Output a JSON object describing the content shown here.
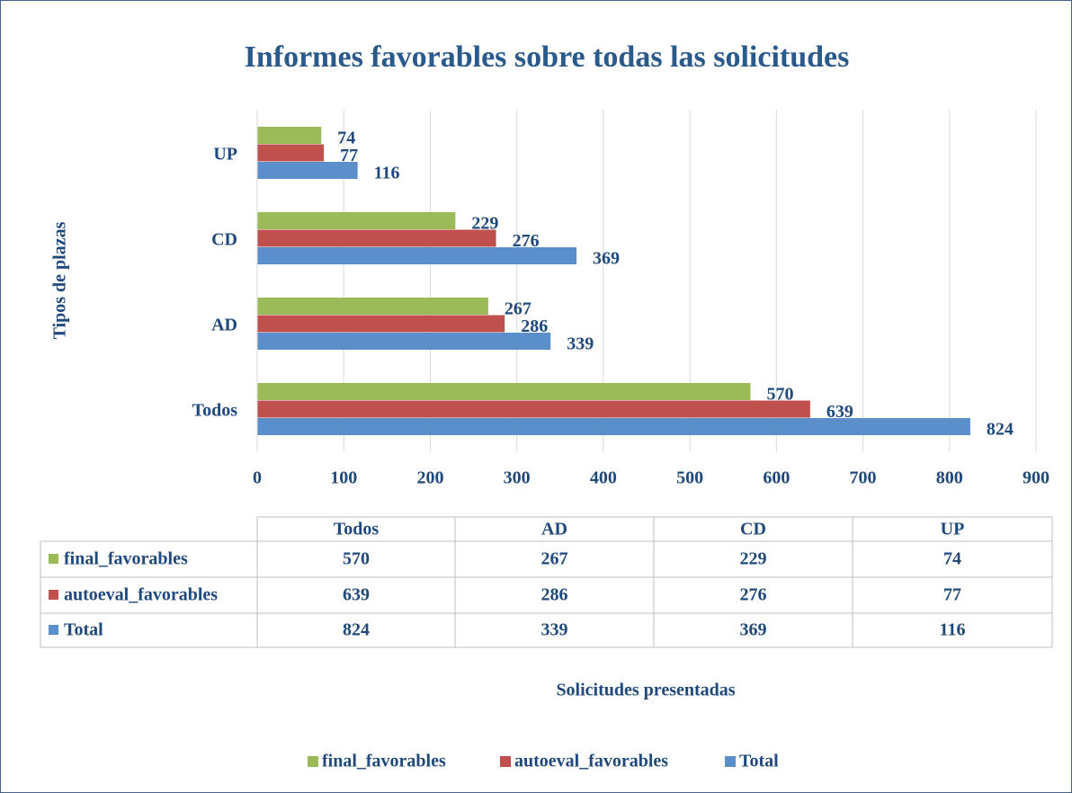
{
  "chart_data": {
    "type": "bar",
    "orientation": "horizontal",
    "title": "Informes favorables sobre todas las solicitudes",
    "y_label": "Tipos de plazas",
    "x_label": "Solicitudes presentadas",
    "categories": [
      "Todos",
      "AD",
      "CD",
      "UP"
    ],
    "series": [
      {
        "name": "final_favorables",
        "color": "#9bbb59",
        "values": [
          570,
          267,
          229,
          74
        ]
      },
      {
        "name": "autoeval_favorables",
        "color": "#c0504d",
        "values": [
          639,
          286,
          276,
          77
        ]
      },
      {
        "name": "Total",
        "color": "#5b8fcc",
        "values": [
          824,
          339,
          369,
          116
        ]
      }
    ],
    "xlim": [
      0,
      900
    ],
    "xticks": [
      0,
      100,
      200,
      300,
      400,
      500,
      600,
      700,
      800,
      900
    ],
    "grid": true,
    "legend": "bottom",
    "data_table": true
  }
}
